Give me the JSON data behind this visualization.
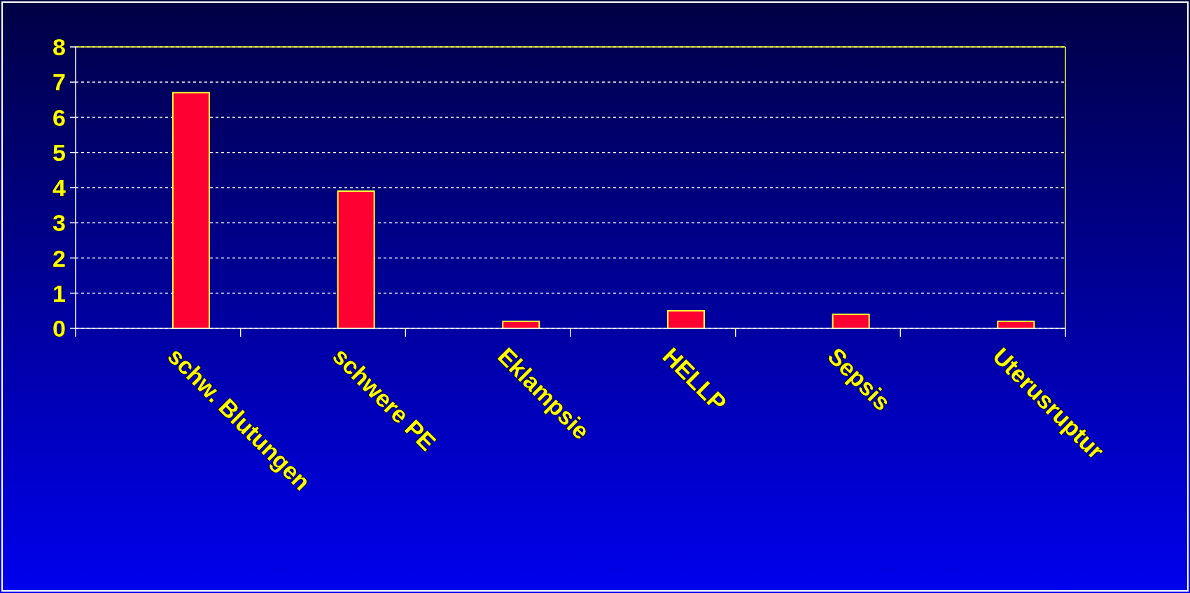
{
  "chart_data": {
    "type": "bar",
    "categories": [
      "schw. Blutungen",
      "schwere PE",
      "Eklampsie",
      "HELLP",
      "Sepsis",
      "Uterusruptur"
    ],
    "values": [
      6.7,
      3.9,
      0.2,
      0.5,
      0.4,
      0.2
    ],
    "color": "#ff0033",
    "ylim": [
      0,
      8
    ],
    "yticks": [
      0,
      1,
      2,
      3,
      4,
      5,
      6,
      7,
      8
    ],
    "grid": "y"
  }
}
